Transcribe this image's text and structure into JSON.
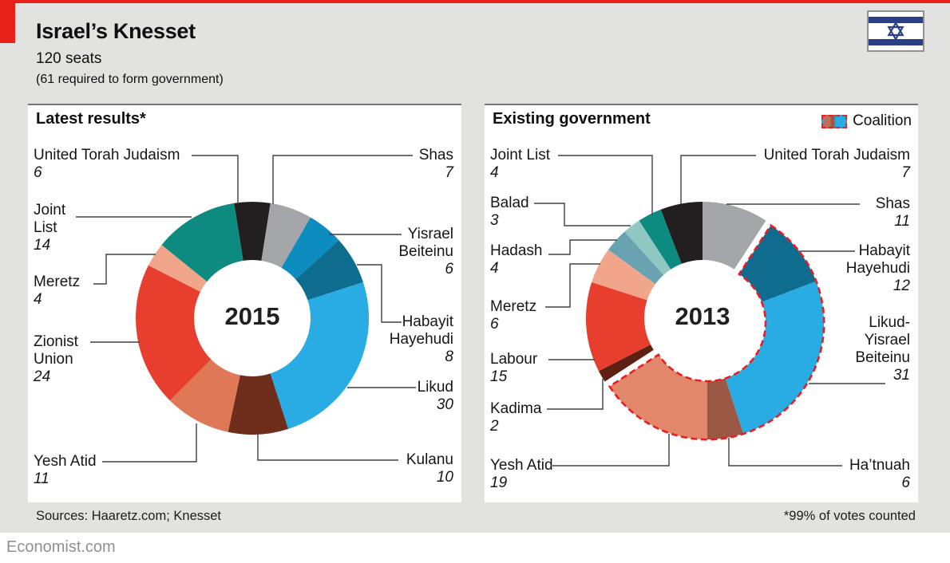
{
  "header": {
    "title": "Israel’s Knesset",
    "subtitle": "120 seats",
    "note": "(61 required to form government)"
  },
  "footer": {
    "sources": "Sources: Haaretz.com; Knesset",
    "footnote": "*99% of votes counted",
    "site": "Economist.com"
  },
  "colors": {
    "accent_red": "#e8221b",
    "coalition_red": "#ed1c24",
    "page_gray": "#e2e3e1",
    "panel_white": "#ffffff",
    "flag_blue": "#2b3f85"
  },
  "chart_data": [
    {
      "type": "pie",
      "title": "Latest results*",
      "center_label": "2015",
      "total_seats": 120,
      "start_angle_deg": -9,
      "slices": [
        {
          "party": "United Torah Judaism",
          "seats": 6,
          "color": "#231f20",
          "label_lines": [
            "United Torah Judaism"
          ]
        },
        {
          "party": "Shas",
          "seats": 7,
          "color": "#a4a6a9",
          "label_lines": [
            "Shas"
          ]
        },
        {
          "party": "Yisrael Beiteinu",
          "seats": 6,
          "color": "#0d8cbf",
          "label_lines": [
            "Yisrael",
            "Beiteinu"
          ]
        },
        {
          "party": "Habayit Hayehudi",
          "seats": 8,
          "color": "#0e6c8e",
          "label_lines": [
            "Habayit",
            "Hayehudi"
          ]
        },
        {
          "party": "Likud",
          "seats": 30,
          "color": "#29abe3",
          "label_lines": [
            "Likud"
          ]
        },
        {
          "party": "Kulanu",
          "seats": 10,
          "color": "#6f2e1c",
          "label_lines": [
            "Kulanu"
          ]
        },
        {
          "party": "Yesh Atid",
          "seats": 11,
          "color": "#df7856",
          "label_lines": [
            "Yesh Atid"
          ]
        },
        {
          "party": "Zionist Union",
          "seats": 24,
          "color": "#e73e2d",
          "label_lines": [
            "Zionist",
            "Union"
          ]
        },
        {
          "party": "Meretz",
          "seats": 4,
          "color": "#f1a68b",
          "label_lines": [
            "Meretz"
          ]
        },
        {
          "party": "Joint List",
          "seats": 14,
          "color": "#0d8b80",
          "label_lines": [
            "Joint",
            "List"
          ]
        }
      ]
    },
    {
      "type": "pie",
      "title": "Existing government",
      "center_label": "2013",
      "total_seats": 120,
      "start_angle_deg": 0,
      "legend_label": "Coalition",
      "slices": [
        {
          "party": "Shas",
          "seats": 11,
          "color": "#a4a6a9",
          "label_lines": [
            "Shas"
          ]
        },
        {
          "party": "Habayit Hayehudi",
          "seats": 12,
          "color": "#0e6c8e",
          "coalition": true,
          "label_lines": [
            "Habayit",
            "Hayehudi"
          ]
        },
        {
          "party": "Likud-Yisrael Beiteinu",
          "seats": 31,
          "color": "#29abe3",
          "coalition": true,
          "label_lines": [
            "Likud-",
            "Yisrael",
            "Beiteinu"
          ]
        },
        {
          "party": "Ha’tnuah",
          "seats": 6,
          "color": "#9b5844",
          "coalition": true,
          "label_lines": [
            "Ha’tnuah"
          ]
        },
        {
          "party": "Yesh Atid",
          "seats": 19,
          "color": "#e2876a",
          "coalition": true,
          "label_lines": [
            "Yesh Atid"
          ]
        },
        {
          "party": "Kadima",
          "seats": 2,
          "color": "#5e2012",
          "label_lines": [
            "Kadima"
          ]
        },
        {
          "party": "Labour",
          "seats": 15,
          "color": "#e73e2d",
          "label_lines": [
            "Labour"
          ]
        },
        {
          "party": "Meretz",
          "seats": 6,
          "color": "#f1a68b",
          "label_lines": [
            "Meretz"
          ]
        },
        {
          "party": "Hadash",
          "seats": 4,
          "color": "#69a3b2",
          "label_lines": [
            "Hadash"
          ]
        },
        {
          "party": "Balad",
          "seats": 3,
          "color": "#90c8c1",
          "label_lines": [
            "Balad"
          ]
        },
        {
          "party": "Joint List",
          "seats": 4,
          "color": "#0d8b80",
          "label_lines": [
            "Joint List"
          ]
        },
        {
          "party": "United Torah Judaism",
          "seats": 7,
          "color": "#231f20",
          "label_lines": [
            "United Torah Judaism"
          ]
        }
      ]
    }
  ]
}
